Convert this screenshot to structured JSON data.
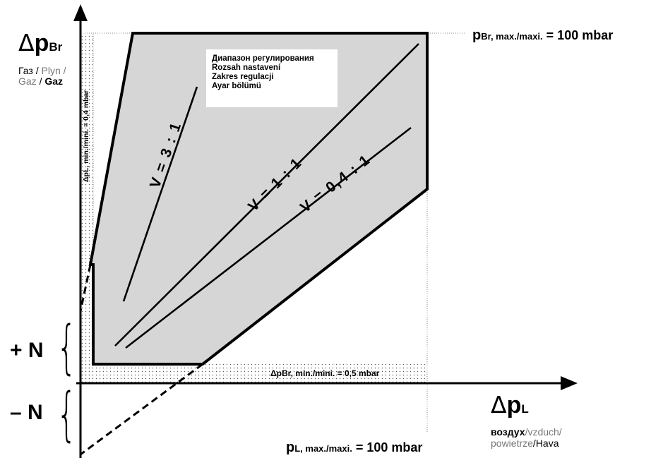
{
  "y_axis": {
    "delta": "Δ",
    "symbol": "p",
    "subscript": "Br",
    "medium": [
      {
        "text": "Газ",
        "tone": "dark"
      },
      {
        "text": " / ",
        "tone": "dark"
      },
      {
        "text": "Plyn /",
        "tone": "gray"
      },
      {
        "text": "Gaz",
        "tone": "gray"
      },
      {
        "text": " / ",
        "tone": "dark"
      },
      {
        "text": "Gaz",
        "tone": "dark"
      }
    ]
  },
  "x_axis": {
    "delta": "Δ",
    "symbol": "p",
    "subscript": "L",
    "medium_line1": [
      {
        "text": "воздух",
        "tone": "dark"
      },
      {
        "text": "/vzduch/",
        "tone": "gray"
      }
    ],
    "medium_line2": [
      {
        "text": "powietrze",
        "tone": "gray"
      },
      {
        "text": "/",
        "tone": "dark"
      },
      {
        "text": "Hava",
        "tone": "dark"
      }
    ]
  },
  "limits": {
    "br_max": {
      "symbol": "p",
      "sub": "Br, max./maxi.",
      "value": " = 100 mbar"
    },
    "l_max": {
      "symbol": "p",
      "sub": "L, max./maxi.",
      "value": " = 100 mbar"
    },
    "l_min_vertical": "ΔpL, min./mini. = 0,4 mbar",
    "br_min_horizontal": "ΔpBr, min./mini. = 0,5 mbar"
  },
  "legend_lines": [
    "Диапазон регулирования",
    "Rozsah nastavení",
    "Zakres regulacji",
    "Ayar bölümü"
  ],
  "ratios": [
    "V = 3 : 1",
    "V = 1 : 1",
    "V = 0,4 : 1"
  ],
  "offsets": {
    "plus": "+ N",
    "minus": "– N",
    "brace": "{"
  },
  "colors": {
    "region_fill": "#d6d6d6",
    "dotted_fill": "#bfbfbf",
    "gray_text": "#777777"
  }
}
